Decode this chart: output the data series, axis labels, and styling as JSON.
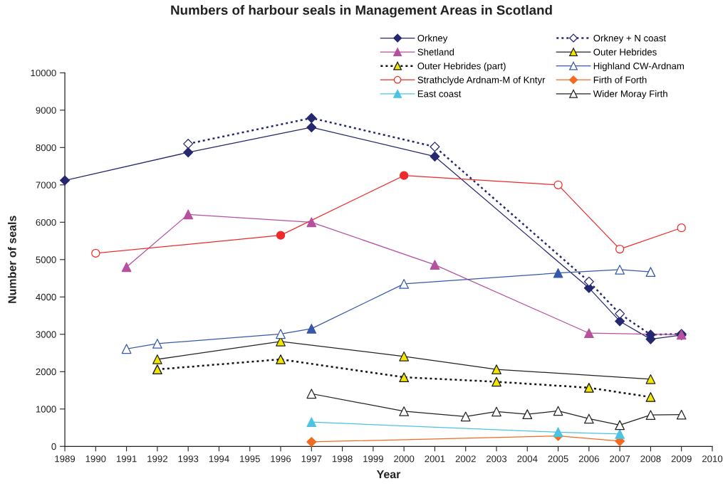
{
  "chart_data": {
    "type": "line",
    "title": "Numbers of harbour seals in Management Areas in Scotland",
    "xlabel": "Year",
    "ylabel": "Number of seals",
    "xlim": [
      1989,
      2010
    ],
    "xticks": [
      1989,
      1990,
      1991,
      1992,
      1993,
      1994,
      1995,
      1996,
      1997,
      1998,
      1999,
      2000,
      2001,
      2002,
      2003,
      2004,
      2005,
      2006,
      2007,
      2008,
      2009,
      2010
    ],
    "ylim": [
      0,
      10000
    ],
    "yticks": [
      0,
      1000,
      2000,
      3000,
      4000,
      5000,
      6000,
      7000,
      8000,
      9000,
      10000
    ],
    "grid": false,
    "legend": "top right",
    "series": [
      {
        "name": "Orkney",
        "color": "#25286f",
        "marker": "diamond",
        "line_style": "solid",
        "x": [
          1989,
          1993,
          1997,
          2001,
          2006,
          2007,
          2008,
          2009
        ],
        "values": [
          7120,
          7870,
          8540,
          7760,
          4240,
          3350,
          2870,
          2980
        ]
      },
      {
        "name": "Orkney + N coast",
        "color": "#25286f",
        "marker": "diamond",
        "line_style": "dotted",
        "x": [
          1993,
          1997,
          2001,
          2006,
          2007,
          2008,
          2009
        ],
        "values": [
          8100,
          8790,
          8020,
          4410,
          3550,
          2990,
          3010
        ],
        "colors": [
          "#ffffff",
          "#25286f",
          "#ffffff",
          "#ffffff",
          "#ffffff",
          "#25286f",
          "#25286f"
        ]
      },
      {
        "name": "Shetland",
        "color": "#b5519f",
        "marker": "triangle",
        "line_style": "solid",
        "x": [
          1991,
          1993,
          1997,
          2001,
          2006,
          2009
        ],
        "values": [
          4800,
          6210,
          6000,
          4860,
          3030,
          2990
        ]
      },
      {
        "name": "Outer Hebrides",
        "color": "#222222",
        "marker": "triangle",
        "line_style": "solid",
        "x": [
          1992,
          1996,
          2000,
          2003,
          2008
        ],
        "values": [
          2330,
          2810,
          2410,
          2060,
          1800
        ],
        "colors": [
          "#f2e500",
          "#f2e500",
          "#f2e500",
          "#f2e500",
          "#f2e500"
        ]
      },
      {
        "name": "Outer Hebrides (part)",
        "color": "#111111",
        "marker": "triangle",
        "line_style": "dotted",
        "x": [
          1992,
          1996,
          2000,
          2003,
          2006,
          2008
        ],
        "values": [
          2060,
          2330,
          1850,
          1730,
          1570,
          1320
        ],
        "colors": [
          "#f2e500",
          "#f2e500",
          "#f2e500",
          "#f2e500",
          "#f2e500",
          "#f2e500"
        ]
      },
      {
        "name": "Highland CW-Ardnam",
        "color": "#3559a8",
        "marker": "triangle",
        "line_style": "solid",
        "x": [
          1991,
          1992,
          1996,
          1997,
          2000,
          2005,
          2007,
          2008
        ],
        "values": [
          2610,
          2750,
          3010,
          3150,
          4350,
          4640,
          4730,
          4670
        ],
        "colors": [
          "#ffffff",
          "#ffffff",
          "#ffffff",
          "#3559a8",
          "#ffffff",
          "#3559a8",
          "#ffffff",
          "#ffffff"
        ]
      },
      {
        "name": "Strathclyde Ardnam-M of Kntyr",
        "color": "#ee2a2a",
        "marker": "circle",
        "line_style": "solid",
        "x": [
          1990,
          1996,
          2000,
          2005,
          2007,
          2009
        ],
        "values": [
          5170,
          5650,
          7250,
          7000,
          5280,
          5850
        ],
        "colors": [
          "#ffffff",
          "#ee2a2a",
          "#ee2a2a",
          "#ffffff",
          "#ffffff",
          "#ffffff"
        ]
      },
      {
        "name": "Firth of Forth",
        "color": "#f26b21",
        "marker": "diamond",
        "line_style": "solid",
        "x": [
          1997,
          2005,
          2007
        ],
        "values": [
          120,
          280,
          140
        ]
      },
      {
        "name": "East coast",
        "color": "#4cc3e3",
        "marker": "triangle",
        "line_style": "solid",
        "x": [
          1997,
          2005,
          2007
        ],
        "values": [
          650,
          380,
          330
        ]
      },
      {
        "name": "Wider Moray Firth",
        "color": "#222222",
        "marker": "triangle",
        "line_style": "solid",
        "x": [
          1997,
          2000,
          2002,
          2003,
          2004,
          2005,
          2006,
          2007,
          2008,
          2009
        ],
        "values": [
          1410,
          940,
          800,
          930,
          860,
          950,
          740,
          570,
          840,
          850
        ],
        "colors": [
          "#ffffff",
          "#ffffff",
          "#ffffff",
          "#ffffff",
          "#ffffff",
          "#ffffff",
          "#ffffff",
          "#ffffff",
          "#ffffff",
          "#ffffff"
        ]
      }
    ]
  }
}
